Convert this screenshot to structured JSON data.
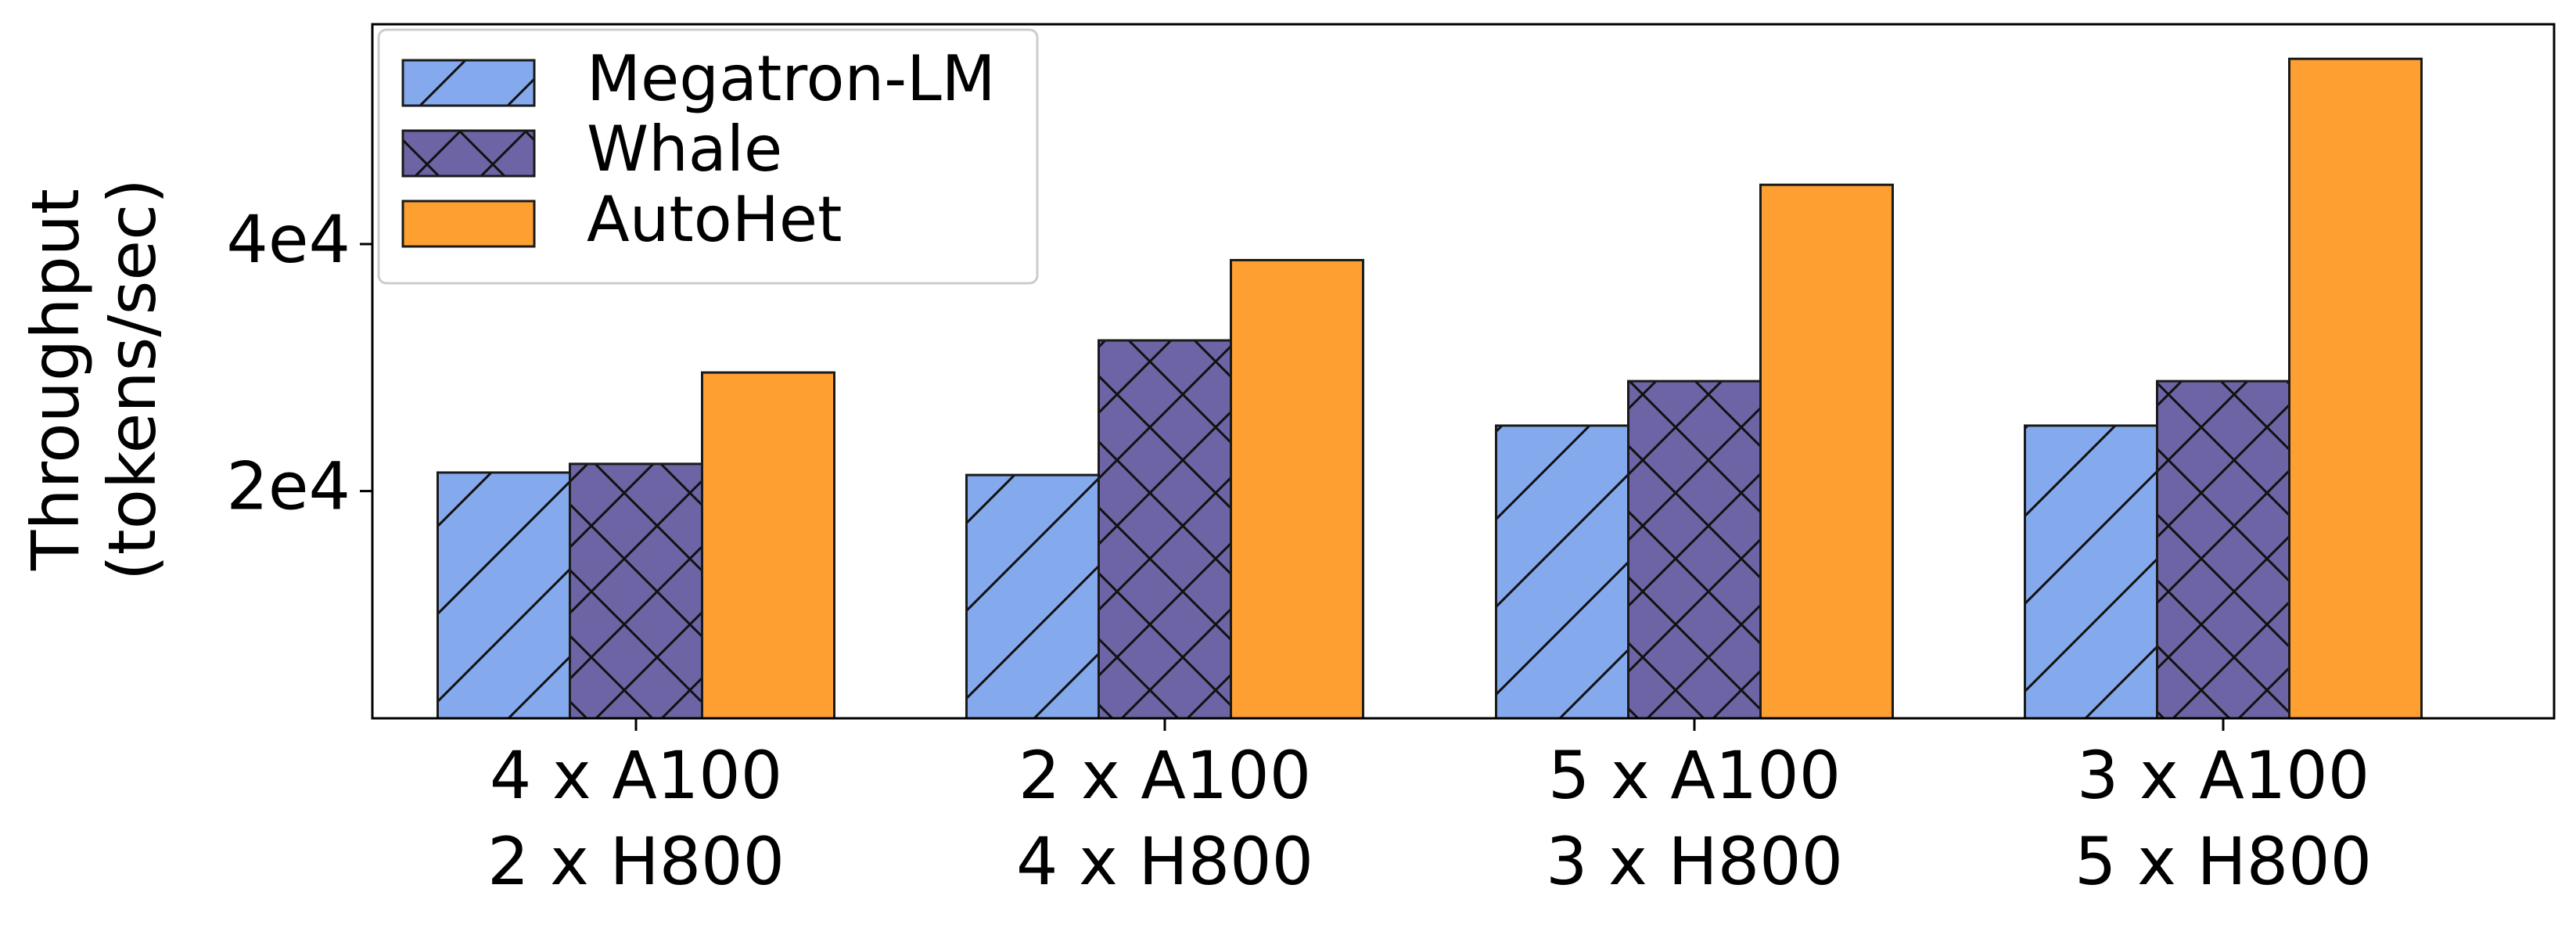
{
  "chart_data": {
    "type": "bar",
    "categories": [
      [
        "4 x A100",
        "2 x H800"
      ],
      [
        "2 x A100",
        "4 x H800"
      ],
      [
        "5 x A100",
        "3 x H800"
      ],
      [
        "3 x A100",
        "5 x H800"
      ]
    ],
    "series": [
      {
        "name": "Megatron-LM",
        "values": [
          21500,
          21300,
          25300,
          25300
        ],
        "color": "#84a9ed",
        "hatch": "diagonal"
      },
      {
        "name": "Whale",
        "values": [
          22200,
          32200,
          28900,
          28900
        ],
        "color": "#6c64a4",
        "hatch": "cross"
      },
      {
        "name": "AutoHet",
        "values": [
          29600,
          38700,
          44800,
          55000
        ],
        "color": "#fea031",
        "hatch": "none"
      }
    ],
    "title": "",
    "xlabel": "",
    "ylabel": [
      "Throughput",
      "(tokens/sec)"
    ],
    "ylim": [
      1600,
      57800
    ],
    "yticks": [
      20000,
      40000
    ],
    "ytick_labels": [
      "2e4",
      "4e4"
    ],
    "grid": false,
    "legend_position": "top-left"
  }
}
